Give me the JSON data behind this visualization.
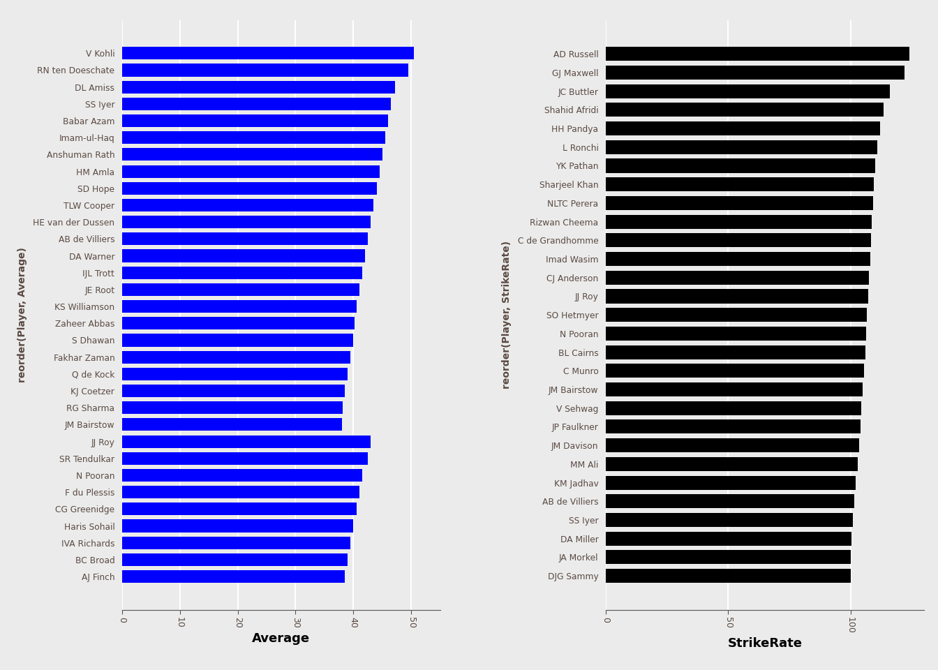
{
  "avg_players_top_to_bottom": [
    "V Kohli",
    "RN ten Doeschate",
    "DL Amiss",
    "SS Iyer",
    "Babar Azam",
    "Imam-ul-Haq",
    "Anshuman Rath",
    "HM Amla",
    "SD Hope",
    "TLW Cooper",
    "HE van der Dussen",
    "AB de Villiers",
    "DA Warner",
    "IJL Trott",
    "JE Root",
    "KS Williamson",
    "Zaheer Abbas",
    "S Dhawan",
    "Fakhar Zaman",
    "Q de Kock",
    "KJ Coetzer",
    "RG Sharma",
    "JM Bairstow",
    "JJ Roy",
    "SR Tendulkar",
    "N Pooran",
    "F du Plessis",
    "CG Greenidge",
    "Haris Sohail",
    "IVA Richards",
    "BC Broad",
    "AJ Finch"
  ],
  "avg_values_top_to_bottom": [
    50.5,
    49.5,
    47.2,
    46.5,
    46.0,
    45.5,
    45.0,
    44.5,
    44.0,
    43.5,
    43.0,
    42.5,
    42.0,
    41.5,
    41.0,
    40.5,
    40.2,
    40.0,
    39.5,
    39.0,
    38.5,
    38.2,
    38.0,
    43.0,
    42.5,
    41.5,
    41.0,
    40.5,
    40.0,
    39.5,
    39.0,
    38.5
  ],
  "sr_players_top_to_bottom": [
    "AD Russell",
    "GJ Maxwell",
    "JC Buttler",
    "Shahid Afridi",
    "HH Pandya",
    "L Ronchi",
    "YK Pathan",
    "Sharjeel Khan",
    "NLTC Perera",
    "Rizwan Cheema",
    "C de Grandhomme",
    "Imad Wasim",
    "CJ Anderson",
    "JJ Roy",
    "SO Hetmyer",
    "N Pooran",
    "BL Cairns",
    "C Munro",
    "JM Bairstow",
    "V Sehwag",
    "JP Faulkner",
    "JM Davison",
    "MM Ali",
    "KM Jadhav",
    "AB de Villiers",
    "SS Iyer",
    "DA Miller",
    "JA Morkel",
    "DJG Sammy"
  ],
  "sr_values_top_to_bottom": [
    124.0,
    122.0,
    116.0,
    113.5,
    112.0,
    111.0,
    110.0,
    109.5,
    109.2,
    108.8,
    108.4,
    108.0,
    107.5,
    107.2,
    106.8,
    106.5,
    106.0,
    105.5,
    105.0,
    104.5,
    104.0,
    103.5,
    103.0,
    102.0,
    101.5,
    101.0,
    100.5,
    100.2,
    100.0
  ],
  "avg_color": "#0000FF",
  "sr_color": "#000000",
  "bg_color": "#EBEBEB",
  "ylabel_avg": "reorder(Player, Average)",
  "ylabel_sr": "reorder(Player, StrikeRate)",
  "xlabel_avg": "Average",
  "xlabel_sr": "StrikeRate",
  "avg_xlim": [
    0,
    55
  ],
  "sr_xlim": [
    0,
    130
  ],
  "avg_xticks": [
    0,
    10,
    20,
    30,
    40,
    50
  ],
  "sr_xticks": [
    0,
    50,
    100
  ]
}
